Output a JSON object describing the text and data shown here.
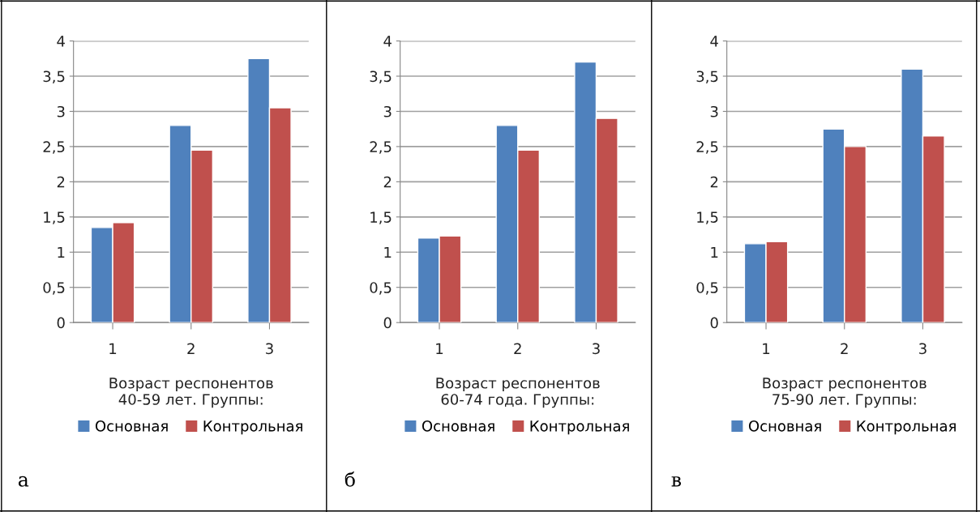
{
  "chart_data": [
    {
      "type": "bar",
      "categories": [
        "1",
        "2",
        "3"
      ],
      "xlabel": "Возраст респонентов\n40-59 лет. Группы:",
      "series": [
        {
          "name": "Основная",
          "color": "#4f81bd",
          "values": [
            1.35,
            2.8,
            3.75
          ]
        },
        {
          "name": "Контрольная",
          "color": "#c0504d",
          "values": [
            1.42,
            2.45,
            3.05
          ]
        }
      ],
      "ylim": [
        0,
        4
      ],
      "yticks": [
        0,
        {
          "value": 0.5,
          "label": "0,5"
        },
        1,
        {
          "value": 1.5,
          "label": "1,5"
        },
        2,
        {
          "value": 2.5,
          "label": "2,5"
        },
        3,
        {
          "value": 3.5,
          "label": "3,5"
        },
        4
      ],
      "grid": "y",
      "legend": "bottom",
      "annotations": [
        "а"
      ]
    },
    {
      "type": "bar",
      "categories": [
        "1",
        "2",
        "3"
      ],
      "xlabel": "Возраст респонентов\n60-74 года. Группы:",
      "series": [
        {
          "name": "Основная",
          "color": "#4f81bd",
          "values": [
            1.2,
            2.8,
            3.7
          ]
        },
        {
          "name": "Контрольная",
          "color": "#c0504d",
          "values": [
            1.23,
            2.45,
            2.9
          ]
        }
      ],
      "ylim": [
        0,
        4
      ],
      "yticks": [
        0,
        {
          "value": 0.5,
          "label": "0,5"
        },
        1,
        {
          "value": 1.5,
          "label": "1,5"
        },
        2,
        {
          "value": 2.5,
          "label": "2,5"
        },
        3,
        {
          "value": 3.5,
          "label": "3,5"
        },
        4
      ],
      "grid": "y",
      "legend": "bottom",
      "annotations": [
        "б"
      ]
    },
    {
      "type": "bar",
      "categories": [
        "1",
        "2",
        "3"
      ],
      "xlabel": "Возраст респонентов\n75-90 лет. Группы:",
      "series": [
        {
          "name": "Основная",
          "color": "#4f81bd",
          "values": [
            1.12,
            2.75,
            3.6
          ]
        },
        {
          "name": "Контрольная",
          "color": "#c0504d",
          "values": [
            1.15,
            2.5,
            2.65
          ]
        }
      ],
      "ylim": [
        0,
        4
      ],
      "yticks": [
        0,
        {
          "value": 0.5,
          "label": "0,5"
        },
        1,
        {
          "value": 1.5,
          "label": "1,5"
        },
        2,
        {
          "value": 2.5,
          "label": "2,5"
        },
        3,
        {
          "value": 3.5,
          "label": "3,5"
        },
        4
      ],
      "grid": "y",
      "legend": "bottom",
      "annotations": [
        "в"
      ]
    }
  ]
}
